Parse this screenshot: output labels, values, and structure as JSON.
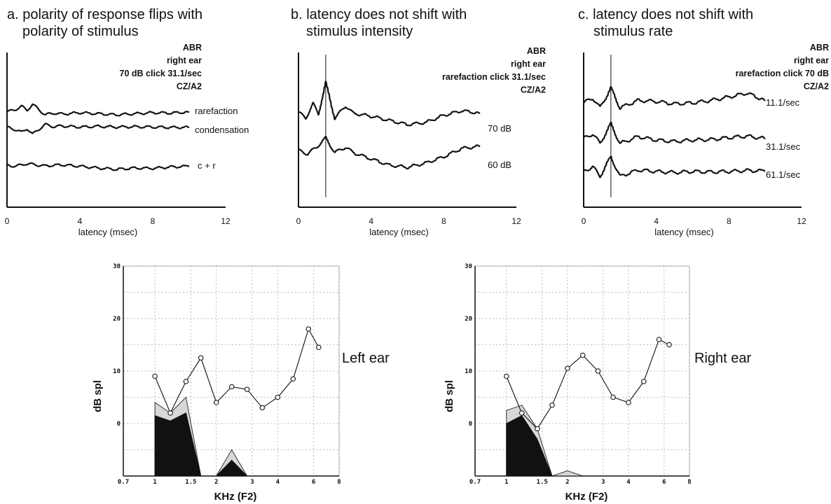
{
  "chart_data": [
    {
      "type": "line",
      "title": [
        "a.  polarity of response flips with",
        "polarity of stimulus"
      ],
      "info": [
        "ABR",
        "right ear",
        "70 dB click 31.1/sec",
        "CZ/A2"
      ],
      "xlabel": "latency (msec)",
      "xticks": [
        "0",
        "4",
        "8",
        "12"
      ],
      "xlim": [
        0,
        12
      ],
      "series": [
        {
          "name": "rarefaction",
          "points": [
            [
              0,
              0
            ],
            [
              0.4,
              0.6
            ],
            [
              0.8,
              1.6
            ],
            [
              1.1,
              0.5
            ],
            [
              1.4,
              2.2
            ],
            [
              1.7,
              0.9
            ],
            [
              2.1,
              -0.8
            ],
            [
              2.6,
              -0.3
            ],
            [
              3,
              -0.6
            ],
            [
              4,
              -0.2
            ],
            [
              5,
              -0.5
            ],
            [
              6,
              -0.8
            ],
            [
              7,
              -0.5
            ],
            [
              8,
              -0.2
            ],
            [
              9,
              -0.3
            ],
            [
              10,
              0
            ]
          ]
        },
        {
          "name": "condensation",
          "points": [
            [
              0,
              0
            ],
            [
              0.4,
              -0.5
            ],
            [
              0.8,
              -1.4
            ],
            [
              1.1,
              -0.3
            ],
            [
              1.4,
              -2.0
            ],
            [
              1.7,
              -0.7
            ],
            [
              2.1,
              0.8
            ],
            [
              2.6,
              0.2
            ],
            [
              3,
              0.4
            ],
            [
              4,
              0.1
            ],
            [
              5,
              0.3
            ],
            [
              6,
              0.1
            ],
            [
              7,
              0.2
            ],
            [
              8,
              0.1
            ],
            [
              9,
              0
            ],
            [
              10,
              0
            ]
          ]
        },
        {
          "name": "c + r",
          "points": [
            [
              0,
              0
            ],
            [
              0.5,
              -0.3
            ],
            [
              1,
              0.4
            ],
            [
              1.5,
              0.2
            ],
            [
              2,
              -0.2
            ],
            [
              3,
              0.1
            ],
            [
              4,
              -0.3
            ],
            [
              5,
              -0.8
            ],
            [
              6,
              -1.2
            ],
            [
              7,
              -0.8
            ],
            [
              8,
              -0.9
            ],
            [
              9,
              -0.5
            ],
            [
              10,
              -0.3
            ]
          ]
        }
      ]
    },
    {
      "type": "line",
      "title": [
        "b.  latency does not shift with",
        "stimulus intensity"
      ],
      "info": [
        "ABR",
        "right ear",
        "rarefaction click 31.1/sec",
        "CZ/A2"
      ],
      "xlabel": "latency (msec)",
      "xticks": [
        "0",
        "4",
        "8",
        "12"
      ],
      "xlim": [
        0,
        12
      ],
      "marker_x": 1.5,
      "series": [
        {
          "name": "70 dB",
          "points": [
            [
              0,
              0
            ],
            [
              0.4,
              -1.5
            ],
            [
              0.8,
              2
            ],
            [
              1.1,
              -0.5
            ],
            [
              1.5,
              7
            ],
            [
              2,
              -1.5
            ],
            [
              2.6,
              1.5
            ],
            [
              3,
              -0.3
            ],
            [
              4,
              -1
            ],
            [
              5,
              -2
            ],
            [
              6,
              -3
            ],
            [
              7,
              -2.5
            ],
            [
              8,
              -0.8
            ],
            [
              9,
              0.3
            ],
            [
              10,
              -0.3
            ]
          ]
        },
        {
          "name": "60 dB",
          "points": [
            [
              0,
              0
            ],
            [
              0.5,
              -0.8
            ],
            [
              1,
              0.8
            ],
            [
              1.5,
              3
            ],
            [
              2,
              -0.5
            ],
            [
              2.6,
              0.8
            ],
            [
              3,
              -0.5
            ],
            [
              4,
              -2
            ],
            [
              5,
              -3.5
            ],
            [
              6,
              -4
            ],
            [
              7,
              -3
            ],
            [
              8,
              -1.5
            ],
            [
              9,
              0.5
            ],
            [
              10,
              1
            ]
          ]
        }
      ]
    },
    {
      "type": "line",
      "title": [
        "c.  latency does not shift with",
        "stimulus rate"
      ],
      "info": [
        "ABR",
        "right ear",
        "rarefaction click 70 dB",
        "CZ/A2"
      ],
      "xlabel": "latency (msec)",
      "xticks": [
        "0",
        "4",
        "8",
        "12"
      ],
      "xlim": [
        0,
        12
      ],
      "marker_x": 1.5,
      "series": [
        {
          "name": "11.1/sec",
          "points": [
            [
              0,
              0
            ],
            [
              0.5,
              1
            ],
            [
              0.9,
              -1
            ],
            [
              1.5,
              3
            ],
            [
              2,
              -1
            ],
            [
              3,
              0.5
            ],
            [
              4,
              0.3
            ],
            [
              5,
              -0.2
            ],
            [
              6,
              0
            ],
            [
              7,
              0.5
            ],
            [
              8,
              1.2
            ],
            [
              9,
              2
            ],
            [
              10,
              0.5
            ]
          ]
        },
        {
          "name": "31.1/sec",
          "points": [
            [
              0,
              0
            ],
            [
              0.5,
              1
            ],
            [
              0.9,
              -1
            ],
            [
              1.5,
              3
            ],
            [
              2,
              -1
            ],
            [
              3,
              0.4
            ],
            [
              4,
              -0.3
            ],
            [
              5,
              -0.6
            ],
            [
              6,
              -0.3
            ],
            [
              7,
              -0.2
            ],
            [
              8,
              0.2
            ],
            [
              9,
              0.5
            ],
            [
              10,
              0
            ]
          ]
        },
        {
          "name": "61.1/sec",
          "points": [
            [
              0,
              0
            ],
            [
              0.5,
              1
            ],
            [
              0.9,
              -1
            ],
            [
              1.5,
              3
            ],
            [
              2,
              -1
            ],
            [
              3,
              0.3
            ],
            [
              4,
              0
            ],
            [
              5,
              -0.2
            ],
            [
              6,
              0
            ],
            [
              7,
              -0.1
            ],
            [
              8,
              0
            ],
            [
              9,
              0.2
            ],
            [
              10,
              0.1
            ]
          ]
        }
      ]
    },
    {
      "type": "line",
      "label": "Left ear",
      "xlabel": "KHz (F2)",
      "ylabel": "dB spl",
      "ylim": [
        -10,
        30
      ],
      "xlim": [
        0.7,
        8
      ],
      "xscale": "log",
      "xticks": [
        {
          "v": 0.7,
          "t": "0.7"
        },
        {
          "v": 1,
          "t": "1"
        },
        {
          "v": 1.5,
          "t": "1.5"
        },
        {
          "v": 2,
          "t": "2"
        },
        {
          "v": 3,
          "t": "3"
        },
        {
          "v": 4,
          "t": "4"
        },
        {
          "v": 6,
          "t": "6"
        },
        {
          "v": 8,
          "t": "8"
        }
      ],
      "yticks": [
        {
          "v": 0,
          "t": "0"
        },
        {
          "v": 10,
          "t": "10"
        },
        {
          "v": 20,
          "t": "20"
        },
        {
          "v": 30,
          "t": "30"
        }
      ],
      "dpoae": {
        "x": [
          1.0,
          1.19,
          1.42,
          1.68,
          2.0,
          2.38,
          2.83,
          3.36,
          4.0,
          4.76,
          5.66,
          6.35
        ],
        "y": [
          9,
          2,
          8,
          12.5,
          4,
          7,
          6.5,
          3,
          5,
          8.5,
          18,
          14.5
        ]
      },
      "noise_upper": {
        "x": [
          1.0,
          1.19,
          1.42,
          1.68,
          2.0,
          2.38,
          2.83,
          3.36,
          4.0,
          4.76,
          5.66,
          6.35
        ],
        "y": [
          4,
          2,
          5,
          -10,
          -10,
          -5,
          -10,
          -10,
          -10,
          -10,
          -10,
          -10
        ]
      },
      "noise_lower": {
        "x": [
          1.0,
          1.19,
          1.42,
          1.68,
          2.0,
          2.38,
          2.83,
          3.36,
          4.0,
          4.76,
          5.66,
          6.35
        ],
        "y": [
          1.5,
          0.5,
          2,
          -10,
          -10,
          -7,
          -10,
          -10,
          -10,
          -10,
          -10,
          -10
        ]
      }
    },
    {
      "type": "line",
      "label": "Right ear",
      "xlabel": "KHz (F2)",
      "ylabel": "dB spl",
      "ylim": [
        -10,
        30
      ],
      "xlim": [
        0.7,
        8
      ],
      "xscale": "log",
      "xticks": [
        {
          "v": 0.7,
          "t": "0.7"
        },
        {
          "v": 1,
          "t": "1"
        },
        {
          "v": 1.5,
          "t": "1.5"
        },
        {
          "v": 2,
          "t": "2"
        },
        {
          "v": 3,
          "t": "3"
        },
        {
          "v": 4,
          "t": "4"
        },
        {
          "v": 6,
          "t": "6"
        },
        {
          "v": 8,
          "t": "8"
        }
      ],
      "yticks": [
        {
          "v": 0,
          "t": "0"
        },
        {
          "v": 10,
          "t": "10"
        },
        {
          "v": 20,
          "t": "20"
        },
        {
          "v": 30,
          "t": "30"
        }
      ],
      "dpoae": {
        "x": [
          1.0,
          1.19,
          1.42,
          1.68,
          2.0,
          2.38,
          2.83,
          3.36,
          4.0,
          4.76,
          5.66,
          6.35
        ],
        "y": [
          9,
          2,
          -1,
          3.5,
          10.5,
          13,
          10,
          5,
          4,
          8,
          16,
          15
        ]
      },
      "noise_upper": {
        "x": [
          1.0,
          1.19,
          1.42,
          1.68,
          2.0,
          2.38,
          2.83,
          3.36,
          4.0,
          4.76,
          5.66,
          6.35
        ],
        "y": [
          2.5,
          3.5,
          -1,
          -10,
          -9,
          -10,
          -10,
          -10,
          -10,
          -10,
          -10,
          -10
        ]
      },
      "noise_lower": {
        "x": [
          1.0,
          1.19,
          1.42,
          1.68,
          2.0,
          2.38,
          2.83,
          3.36,
          4.0,
          4.76,
          5.66,
          6.35
        ],
        "y": [
          0,
          1.5,
          -3,
          -10,
          -10,
          -10,
          -10,
          -10,
          -10,
          -10,
          -10,
          -10
        ]
      }
    }
  ]
}
